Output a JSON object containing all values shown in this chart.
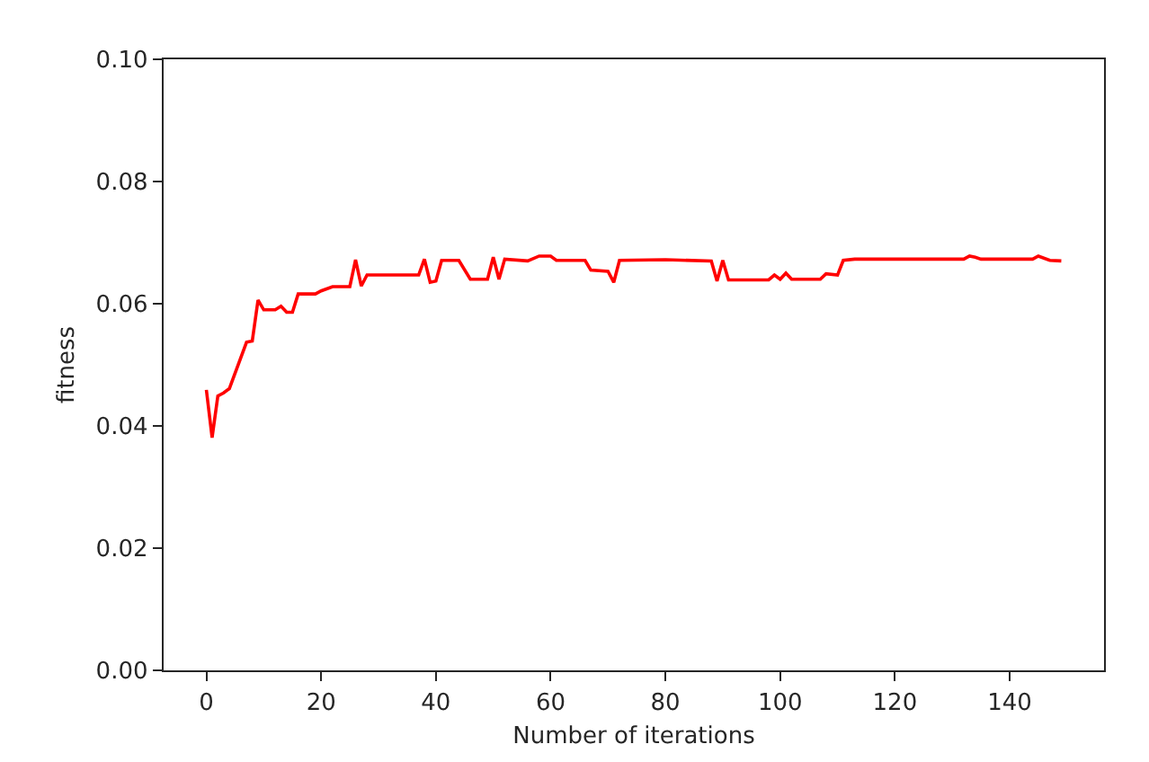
{
  "chart_data": {
    "type": "line",
    "xlabel": "Number of iterations",
    "ylabel": "fitness",
    "x": [
      0,
      1,
      2,
      3,
      4,
      7,
      8,
      9,
      10,
      12,
      13,
      14,
      15,
      16,
      19,
      20,
      22,
      25,
      26,
      27,
      28,
      37,
      38,
      39,
      40,
      41,
      44,
      46,
      49,
      50,
      51,
      52,
      56,
      58,
      60,
      61,
      66,
      67,
      70,
      71,
      72,
      80,
      88,
      89,
      90,
      91,
      98,
      99,
      100,
      101,
      102,
      107,
      108,
      110,
      111,
      113,
      132,
      133,
      134,
      135,
      144,
      145,
      147,
      149
    ],
    "values": [
      0.0459,
      0.0381,
      0.0449,
      0.0454,
      0.0461,
      0.0537,
      0.0539,
      0.0606,
      0.059,
      0.059,
      0.0596,
      0.0586,
      0.0586,
      0.0616,
      0.0616,
      0.0621,
      0.0628,
      0.0628,
      0.0672,
      0.0629,
      0.0647,
      0.0647,
      0.0673,
      0.0635,
      0.0637,
      0.0671,
      0.0671,
      0.064,
      0.064,
      0.0676,
      0.064,
      0.0673,
      0.067,
      0.0678,
      0.0678,
      0.0671,
      0.0671,
      0.0655,
      0.0653,
      0.0635,
      0.0671,
      0.0672,
      0.067,
      0.0637,
      0.0671,
      0.0639,
      0.0639,
      0.0647,
      0.064,
      0.065,
      0.064,
      0.064,
      0.0649,
      0.0647,
      0.0671,
      0.0673,
      0.0673,
      0.0678,
      0.0676,
      0.0673,
      0.0673,
      0.0678,
      0.0671,
      0.067
    ],
    "color": "#ff0000",
    "xlim": [
      -7.45,
      156.45
    ],
    "xticks": [
      0,
      20,
      40,
      60,
      80,
      100,
      120,
      140
    ],
    "ylim": [
      0,
      0.1
    ],
    "yticks": [
      {
        "value": 0,
        "label": "0.00"
      },
      {
        "value": 0.02,
        "label": "0.02"
      },
      {
        "value": 0.04,
        "label": "0.04"
      },
      {
        "value": 0.06,
        "label": "0.06"
      },
      {
        "value": 0.08,
        "label": "0.08"
      },
      {
        "value": 0.1,
        "label": "0.10"
      }
    ],
    "line_style": "solid"
  }
}
